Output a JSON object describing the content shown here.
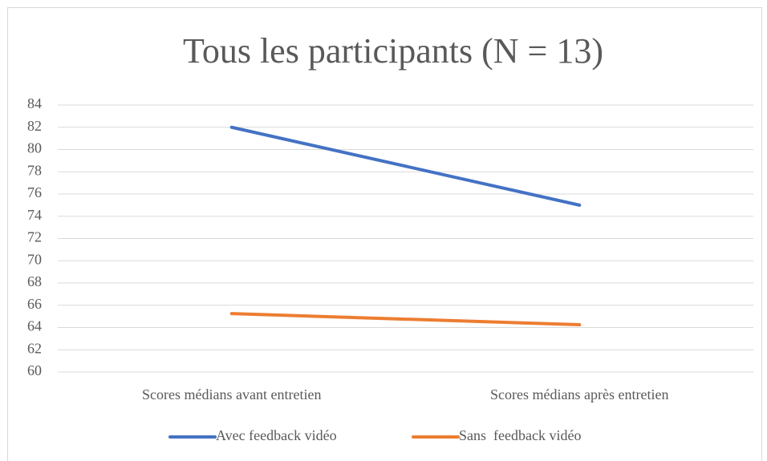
{
  "chart_data": {
    "type": "line",
    "title": "Tous les participants (N = 13)",
    "categories": [
      "Scores médians avant entretien",
      "Scores médians après entretien"
    ],
    "series": [
      {
        "name": "Avec feedback vidéo",
        "color": "#4472c4",
        "values": [
          82,
          75
        ]
      },
      {
        "name": "Sans  feedback vidéo",
        "color": "#ed7d31",
        "values": [
          65.25,
          64.25
        ]
      }
    ],
    "ylim": [
      60,
      84
    ],
    "yticks": [
      60,
      62,
      64,
      66,
      68,
      70,
      72,
      74,
      76,
      78,
      80,
      82,
      84
    ],
    "grid": true,
    "legend": "bottom"
  }
}
